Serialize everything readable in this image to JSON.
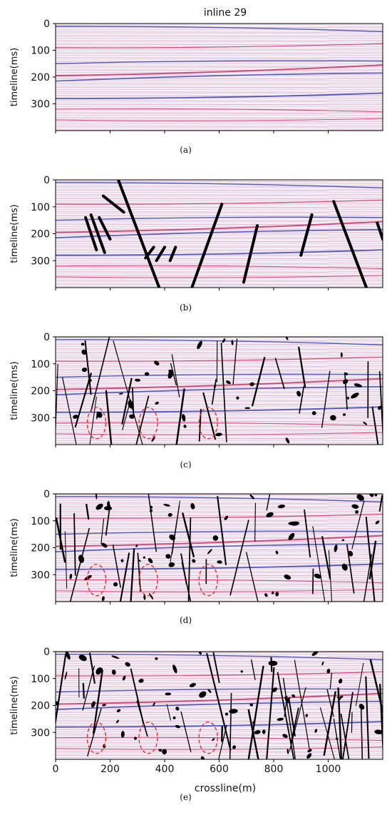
{
  "figure_title": "inline 29",
  "ylabel": "timeline(ms)",
  "xlabel": "crossline(m)",
  "y_ticks": [
    "0",
    "100",
    "200",
    "300"
  ],
  "x_ticks": [
    "0",
    "200",
    "400",
    "600",
    "800",
    "1000"
  ],
  "captions": [
    "(a)",
    "(b)",
    "(c)",
    "(d)",
    "(e)"
  ],
  "colors": {
    "seismic_red": "#c8326a",
    "seismic_blue": "#3a3fae",
    "fault": "#000000",
    "highlight_ellipse": "#e03030"
  },
  "chart_data": {
    "type": "image-panels",
    "title": "inline 29",
    "xlabel": "crossline(m)",
    "ylabel": "timeline(ms)",
    "xlim": [
      0,
      1200
    ],
    "ylim": [
      400,
      0
    ],
    "panels": [
      {
        "caption": "(a)",
        "content": "seismic section"
      },
      {
        "caption": "(b)",
        "content": "seismic section with interpreted faults",
        "fault_lines": [
          [
            [
              230,
              0
            ],
            [
              380,
              400
            ]
          ],
          [
            [
              175,
              60
            ],
            [
              250,
              120
            ]
          ],
          [
            [
              130,
              130
            ],
            [
              180,
              270
            ]
          ],
          [
            [
              160,
              140
            ],
            [
              200,
              220
            ]
          ],
          [
            [
              110,
              140
            ],
            [
              150,
              260
            ]
          ],
          [
            [
              610,
              90
            ],
            [
              500,
              400
            ]
          ],
          [
            [
              740,
              170
            ],
            [
              690,
              380
            ]
          ],
          [
            [
              940,
              130
            ],
            [
              900,
              280
            ]
          ],
          [
            [
              1020,
              80
            ],
            [
              1140,
              400
            ]
          ],
          [
            [
              1180,
              160
            ],
            [
              1200,
              220
            ]
          ],
          [
            [
              330,
              290
            ],
            [
              360,
              250
            ]
          ],
          [
            [
              370,
              300
            ],
            [
              400,
              250
            ]
          ],
          [
            [
              420,
              300
            ],
            [
              440,
              250
            ]
          ]
        ]
      },
      {
        "caption": "(c)",
        "content": "seismic section with detected faults",
        "highlight_ellipses": [
          [
            150,
            320
          ],
          [
            340,
            320
          ],
          [
            560,
            320
          ]
        ]
      },
      {
        "caption": "(d)",
        "content": "seismic section with detected faults",
        "highlight_ellipses": [
          [
            150,
            320
          ],
          [
            340,
            320
          ],
          [
            560,
            320
          ]
        ]
      },
      {
        "caption": "(e)",
        "content": "seismic section with detected faults",
        "highlight_ellipses": [
          [
            150,
            320
          ],
          [
            340,
            320
          ],
          [
            560,
            320
          ]
        ]
      }
    ]
  }
}
